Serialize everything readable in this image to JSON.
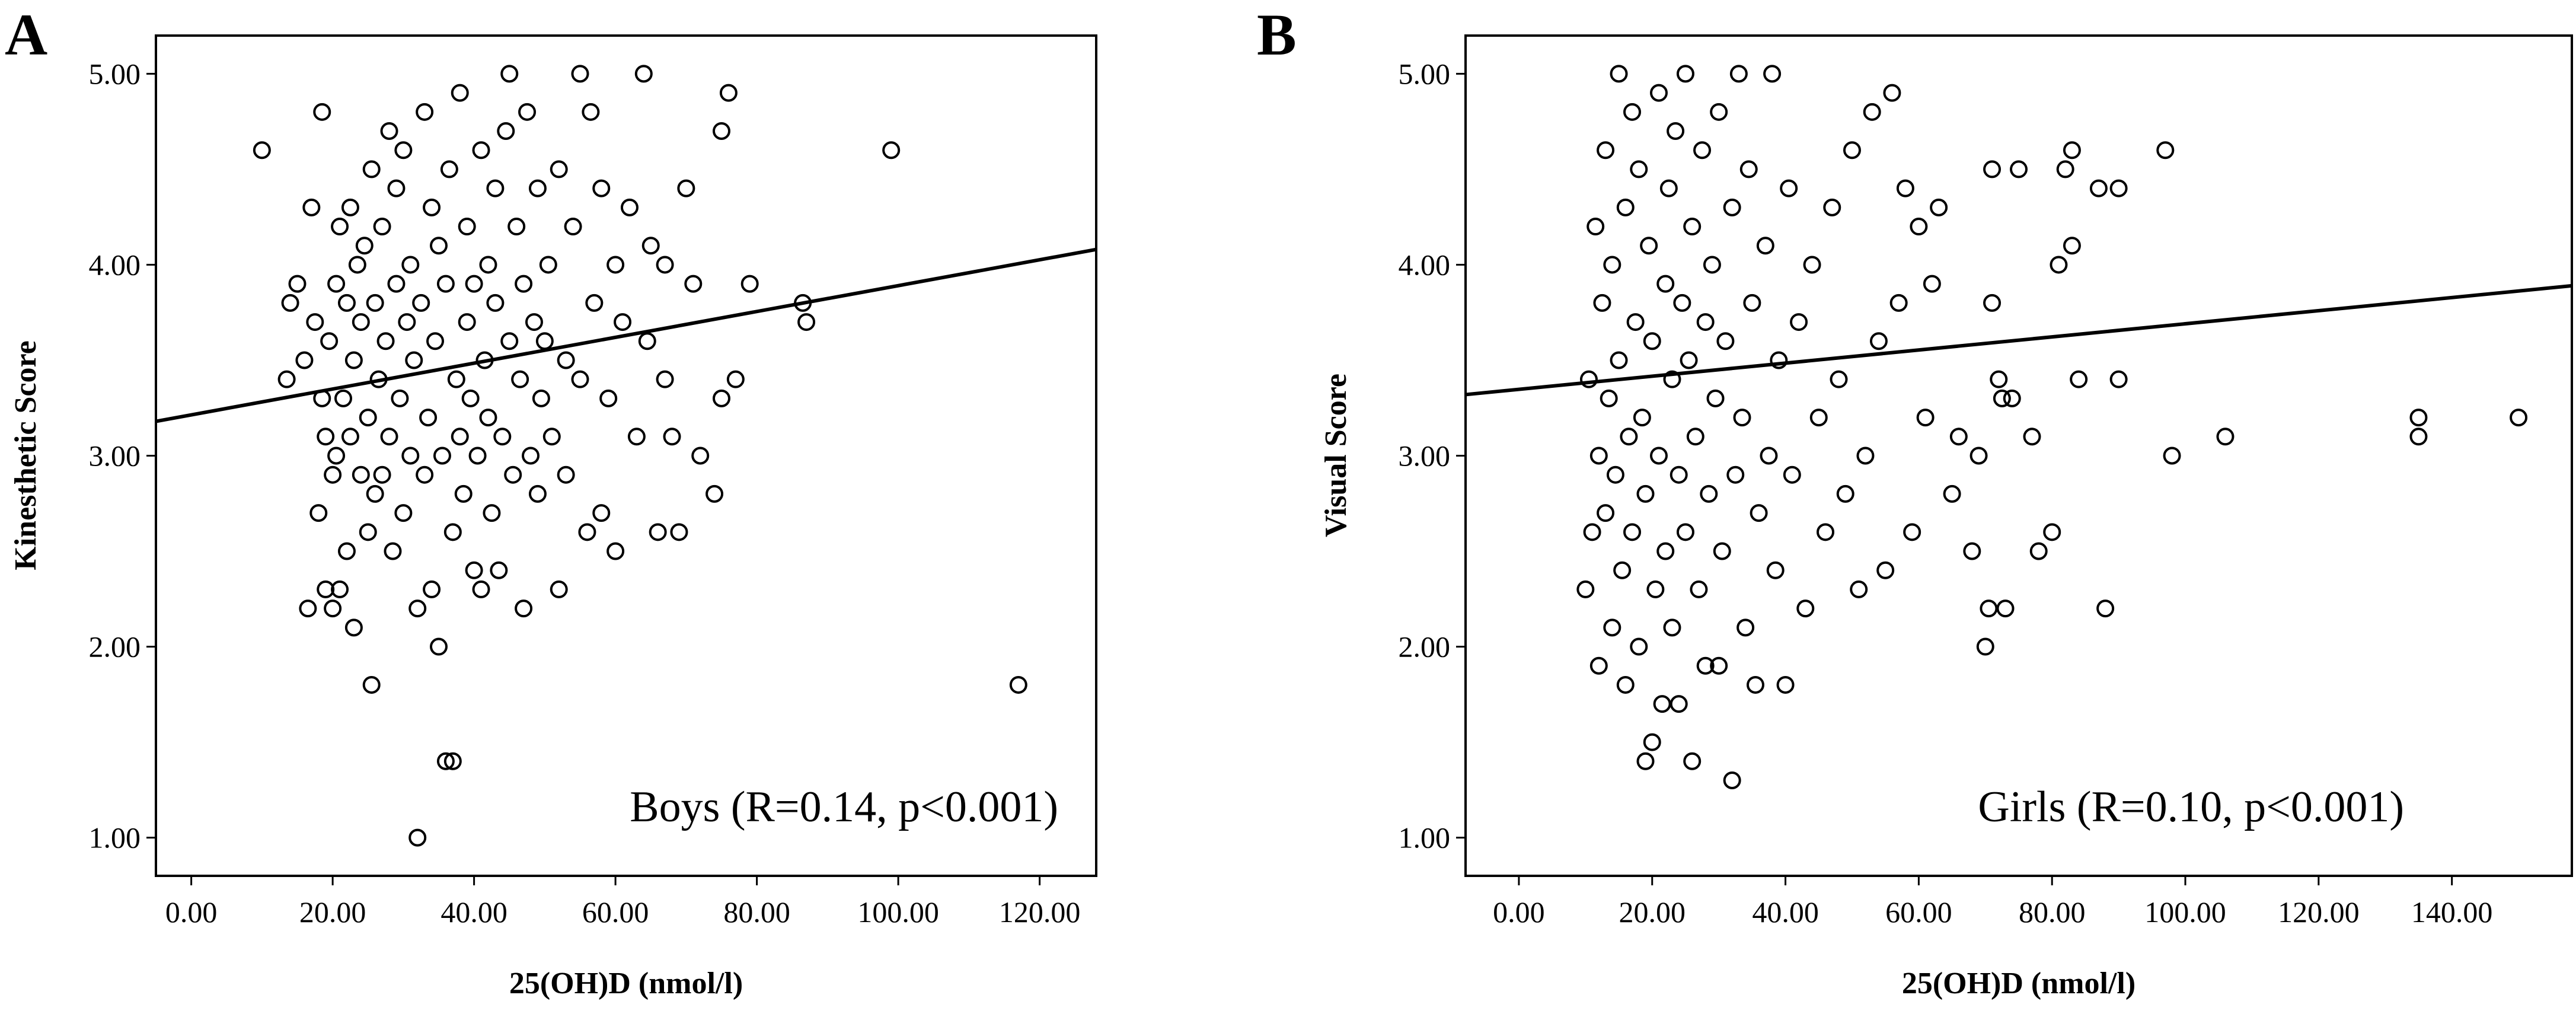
{
  "figure": {
    "panels": [
      {
        "letter": "A",
        "annotation": "Boys (R=0.14, p<0.001)",
        "xlabel": "25(OH)D (nmol/l)",
        "ylabel": "Kinesthetic Score",
        "xticks": [
          "0.00",
          "20.00",
          "40.00",
          "60.00",
          "80.00",
          "100.00",
          "120.00"
        ],
        "yticks": [
          "1.00",
          "2.00",
          "3.00",
          "4.00",
          "5.00"
        ]
      },
      {
        "letter": "B",
        "annotation": "Girls (R=0.10, p<0.001)",
        "xlabel": "25(OH)D (nmol/l)",
        "ylabel": "Visual Score",
        "xticks": [
          "0.00",
          "20.00",
          "40.00",
          "60.00",
          "80.00",
          "100.00",
          "120.00",
          "140.00"
        ],
        "yticks": [
          "1.00",
          "2.00",
          "3.00",
          "4.00",
          "5.00"
        ]
      }
    ]
  },
  "chart_data": [
    {
      "type": "scatter",
      "panel": "A",
      "title": "",
      "xlabel": "25(OH)D (nmol/l)",
      "ylabel": "Kinesthetic Score",
      "annotation": "Boys (R=0.14, p<0.001)",
      "xlim": [
        -5,
        128
      ],
      "ylim": [
        0.8,
        5.2
      ],
      "xticks": [
        0,
        20,
        40,
        60,
        80,
        100,
        120
      ],
      "yticks": [
        1,
        2,
        3,
        4,
        5
      ],
      "grid": false,
      "marker": "open-circle",
      "regression_line": {
        "x": [
          -5,
          128
        ],
        "y": [
          3.18,
          4.08
        ]
      },
      "points": [
        [
          10.0,
          4.6
        ],
        [
          13.5,
          3.4
        ],
        [
          14.0,
          3.8
        ],
        [
          15.0,
          3.9
        ],
        [
          16.0,
          3.5
        ],
        [
          16.5,
          2.2
        ],
        [
          17.0,
          4.3
        ],
        [
          17.5,
          3.7
        ],
        [
          18.0,
          2.7
        ],
        [
          18.5,
          3.3
        ],
        [
          18.5,
          4.8
        ],
        [
          19.0,
          3.1
        ],
        [
          19.0,
          2.3
        ],
        [
          19.5,
          3.6
        ],
        [
          20.0,
          2.2
        ],
        [
          20.0,
          2.9
        ],
        [
          20.5,
          3.0
        ],
        [
          20.5,
          3.9
        ],
        [
          21.0,
          2.3
        ],
        [
          21.0,
          4.2
        ],
        [
          21.5,
          3.3
        ],
        [
          22.0,
          3.8
        ],
        [
          22.0,
          2.5
        ],
        [
          22.5,
          4.3
        ],
        [
          22.5,
          3.1
        ],
        [
          23.0,
          2.1
        ],
        [
          23.0,
          3.5
        ],
        [
          23.5,
          4.0
        ],
        [
          24.0,
          2.9
        ],
        [
          24.0,
          3.7
        ],
        [
          24.5,
          4.1
        ],
        [
          25.0,
          3.2
        ],
        [
          25.0,
          2.6
        ],
        [
          25.5,
          1.8
        ],
        [
          25.5,
          4.5
        ],
        [
          26.0,
          3.8
        ],
        [
          26.0,
          2.8
        ],
        [
          26.5,
          3.4
        ],
        [
          27.0,
          4.2
        ],
        [
          27.0,
          2.9
        ],
        [
          27.5,
          3.6
        ],
        [
          28.0,
          4.7
        ],
        [
          28.0,
          3.1
        ],
        [
          28.5,
          2.5
        ],
        [
          29.0,
          3.9
        ],
        [
          29.0,
          4.4
        ],
        [
          29.5,
          3.3
        ],
        [
          30.0,
          2.7
        ],
        [
          30.0,
          4.6
        ],
        [
          30.5,
          3.7
        ],
        [
          31.0,
          3.0
        ],
        [
          31.0,
          4.0
        ],
        [
          31.5,
          3.5
        ],
        [
          32.0,
          2.2
        ],
        [
          32.0,
          1.0
        ],
        [
          32.5,
          3.8
        ],
        [
          33.0,
          4.8
        ],
        [
          33.0,
          2.9
        ],
        [
          33.5,
          3.2
        ],
        [
          34.0,
          4.3
        ],
        [
          34.0,
          2.3
        ],
        [
          34.5,
          3.6
        ],
        [
          35.0,
          2.0
        ],
        [
          35.0,
          4.1
        ],
        [
          35.5,
          3.0
        ],
        [
          36.0,
          1.4
        ],
        [
          36.0,
          3.9
        ],
        [
          36.5,
          4.5
        ],
        [
          37.0,
          1.4
        ],
        [
          37.0,
          2.6
        ],
        [
          37.5,
          3.4
        ],
        [
          38.0,
          4.9
        ],
        [
          38.0,
          3.1
        ],
        [
          38.5,
          2.8
        ],
        [
          39.0,
          3.7
        ],
        [
          39.0,
          4.2
        ],
        [
          39.5,
          3.3
        ],
        [
          40.0,
          2.4
        ],
        [
          40.0,
          3.9
        ],
        [
          40.5,
          3.0
        ],
        [
          41.0,
          4.6
        ],
        [
          41.0,
          2.3
        ],
        [
          41.5,
          3.5
        ],
        [
          42.0,
          4.0
        ],
        [
          42.0,
          3.2
        ],
        [
          42.5,
          2.7
        ],
        [
          43.0,
          3.8
        ],
        [
          43.0,
          4.4
        ],
        [
          43.5,
          2.4
        ],
        [
          44.0,
          3.1
        ],
        [
          44.5,
          4.7
        ],
        [
          45.0,
          5.0
        ],
        [
          45.0,
          3.6
        ],
        [
          45.5,
          2.9
        ],
        [
          46.0,
          4.2
        ],
        [
          46.5,
          3.4
        ],
        [
          47.0,
          2.2
        ],
        [
          47.0,
          3.9
        ],
        [
          47.5,
          4.8
        ],
        [
          48.0,
          3.0
        ],
        [
          48.5,
          3.7
        ],
        [
          49.0,
          2.8
        ],
        [
          49.0,
          4.4
        ],
        [
          49.5,
          3.3
        ],
        [
          50.0,
          3.6
        ],
        [
          50.5,
          4.0
        ],
        [
          51.0,
          3.1
        ],
        [
          52.0,
          2.3
        ],
        [
          52.0,
          4.5
        ],
        [
          53.0,
          3.5
        ],
        [
          53.0,
          2.9
        ],
        [
          54.0,
          4.2
        ],
        [
          55.0,
          5.0
        ],
        [
          55.0,
          3.4
        ],
        [
          56.0,
          2.6
        ],
        [
          56.5,
          4.8
        ],
        [
          57.0,
          3.8
        ],
        [
          58.0,
          2.7
        ],
        [
          58.0,
          4.4
        ],
        [
          59.0,
          3.3
        ],
        [
          60.0,
          2.5
        ],
        [
          60.0,
          4.0
        ],
        [
          61.0,
          3.7
        ],
        [
          62.0,
          4.3
        ],
        [
          63.0,
          3.1
        ],
        [
          64.0,
          5.0
        ],
        [
          64.5,
          3.6
        ],
        [
          65.0,
          4.1
        ],
        [
          66.0,
          2.6
        ],
        [
          67.0,
          3.4
        ],
        [
          67.0,
          4.0
        ],
        [
          68.0,
          3.1
        ],
        [
          69.0,
          2.6
        ],
        [
          70.0,
          4.4
        ],
        [
          71.0,
          3.9
        ],
        [
          72.0,
          3.0
        ],
        [
          74.0,
          2.8
        ],
        [
          75.0,
          4.7
        ],
        [
          75.0,
          3.3
        ],
        [
          76.0,
          4.9
        ],
        [
          77.0,
          3.4
        ],
        [
          79.0,
          3.9
        ],
        [
          86.5,
          3.8
        ],
        [
          87.0,
          3.7
        ],
        [
          99.0,
          4.6
        ],
        [
          117.0,
          1.8
        ]
      ]
    },
    {
      "type": "scatter",
      "panel": "B",
      "title": "",
      "xlabel": "25(OH)D (nmol/l)",
      "ylabel": "Visual Score",
      "annotation": "Girls (R=0.10, p<0.001)",
      "xlim": [
        -8,
        158
      ],
      "ylim": [
        0.8,
        5.2
      ],
      "xticks": [
        0,
        20,
        40,
        60,
        80,
        100,
        120,
        140
      ],
      "yticks": [
        1,
        2,
        3,
        4,
        5
      ],
      "grid": false,
      "marker": "open-circle",
      "regression_line": {
        "x": [
          -8,
          158
        ],
        "y": [
          3.32,
          3.89
        ]
      },
      "points": [
        [
          10.0,
          2.3
        ],
        [
          10.5,
          3.4
        ],
        [
          11.0,
          2.6
        ],
        [
          11.5,
          4.2
        ],
        [
          12.0,
          1.9
        ],
        [
          12.0,
          3.0
        ],
        [
          12.5,
          3.8
        ],
        [
          13.0,
          2.7
        ],
        [
          13.0,
          4.6
        ],
        [
          13.5,
          3.3
        ],
        [
          14.0,
          2.1
        ],
        [
          14.0,
          4.0
        ],
        [
          14.5,
          2.9
        ],
        [
          15.0,
          5.0
        ],
        [
          15.0,
          3.5
        ],
        [
          15.5,
          2.4
        ],
        [
          16.0,
          4.3
        ],
        [
          16.0,
          1.8
        ],
        [
          16.5,
          3.1
        ],
        [
          17.0,
          4.8
        ],
        [
          17.0,
          2.6
        ],
        [
          17.5,
          3.7
        ],
        [
          18.0,
          2.0
        ],
        [
          18.0,
          4.5
        ],
        [
          18.5,
          3.2
        ],
        [
          19.0,
          1.4
        ],
        [
          19.0,
          2.8
        ],
        [
          19.5,
          4.1
        ],
        [
          20.0,
          3.6
        ],
        [
          20.0,
          1.5
        ],
        [
          20.5,
          2.3
        ],
        [
          21.0,
          4.9
        ],
        [
          21.0,
          3.0
        ],
        [
          21.5,
          1.7
        ],
        [
          22.0,
          3.9
        ],
        [
          22.0,
          2.5
        ],
        [
          22.5,
          4.4
        ],
        [
          23.0,
          3.4
        ],
        [
          23.0,
          2.1
        ],
        [
          23.5,
          4.7
        ],
        [
          24.0,
          2.9
        ],
        [
          24.0,
          1.7
        ],
        [
          24.5,
          3.8
        ],
        [
          25.0,
          5.0
        ],
        [
          25.0,
          2.6
        ],
        [
          25.5,
          3.5
        ],
        [
          26.0,
          1.4
        ],
        [
          26.0,
          4.2
        ],
        [
          26.5,
          3.1
        ],
        [
          27.0,
          2.3
        ],
        [
          27.5,
          4.6
        ],
        [
          28.0,
          3.7
        ],
        [
          28.0,
          1.9
        ],
        [
          28.5,
          2.8
        ],
        [
          29.0,
          4.0
        ],
        [
          29.5,
          3.3
        ],
        [
          30.0,
          1.9
        ],
        [
          30.0,
          4.8
        ],
        [
          30.5,
          2.5
        ],
        [
          31.0,
          3.6
        ],
        [
          32.0,
          1.3
        ],
        [
          32.0,
          4.3
        ],
        [
          32.5,
          2.9
        ],
        [
          33.0,
          5.0
        ],
        [
          33.5,
          3.2
        ],
        [
          34.0,
          2.1
        ],
        [
          34.5,
          4.5
        ],
        [
          35.0,
          3.8
        ],
        [
          35.5,
          1.8
        ],
        [
          36.0,
          2.7
        ],
        [
          37.0,
          4.1
        ],
        [
          37.5,
          3.0
        ],
        [
          38.0,
          5.0
        ],
        [
          38.5,
          2.4
        ],
        [
          39.0,
          3.5
        ],
        [
          40.0,
          1.8
        ],
        [
          40.5,
          4.4
        ],
        [
          41.0,
          2.9
        ],
        [
          42.0,
          3.7
        ],
        [
          43.0,
          2.2
        ],
        [
          44.0,
          4.0
        ],
        [
          45.0,
          3.2
        ],
        [
          46.0,
          2.6
        ],
        [
          47.0,
          4.3
        ],
        [
          48.0,
          3.4
        ],
        [
          49.0,
          2.8
        ],
        [
          50.0,
          4.6
        ],
        [
          51.0,
          2.3
        ],
        [
          52.0,
          3.0
        ],
        [
          53.0,
          4.8
        ],
        [
          54.0,
          3.6
        ],
        [
          55.0,
          2.4
        ],
        [
          56.0,
          4.9
        ],
        [
          57.0,
          3.8
        ],
        [
          58.0,
          4.4
        ],
        [
          59.0,
          2.6
        ],
        [
          60.0,
          4.2
        ],
        [
          61.0,
          3.2
        ],
        [
          62.0,
          3.9
        ],
        [
          63.0,
          4.3
        ],
        [
          65.0,
          2.8
        ],
        [
          66.0,
          3.1
        ],
        [
          68.0,
          2.5
        ],
        [
          69.0,
          3.0
        ],
        [
          70.0,
          2.0
        ],
        [
          70.5,
          2.2
        ],
        [
          71.0,
          3.8
        ],
        [
          71.0,
          4.5
        ],
        [
          72.0,
          3.4
        ],
        [
          72.5,
          3.3
        ],
        [
          73.0,
          2.2
        ],
        [
          74.0,
          3.3
        ],
        [
          75.0,
          4.5
        ],
        [
          77.0,
          3.1
        ],
        [
          78.0,
          2.5
        ],
        [
          80.0,
          2.6
        ],
        [
          81.0,
          4.0
        ],
        [
          82.0,
          4.5
        ],
        [
          83.0,
          4.1
        ],
        [
          83.0,
          4.6
        ],
        [
          84.0,
          3.4
        ],
        [
          87.0,
          4.4
        ],
        [
          88.0,
          2.2
        ],
        [
          90.0,
          3.4
        ],
        [
          90.0,
          4.4
        ],
        [
          97.0,
          4.6
        ],
        [
          98.0,
          3.0
        ],
        [
          106.0,
          3.1
        ],
        [
          135.0,
          3.1
        ],
        [
          135.0,
          3.2
        ],
        [
          150.0,
          3.2
        ]
      ]
    }
  ]
}
